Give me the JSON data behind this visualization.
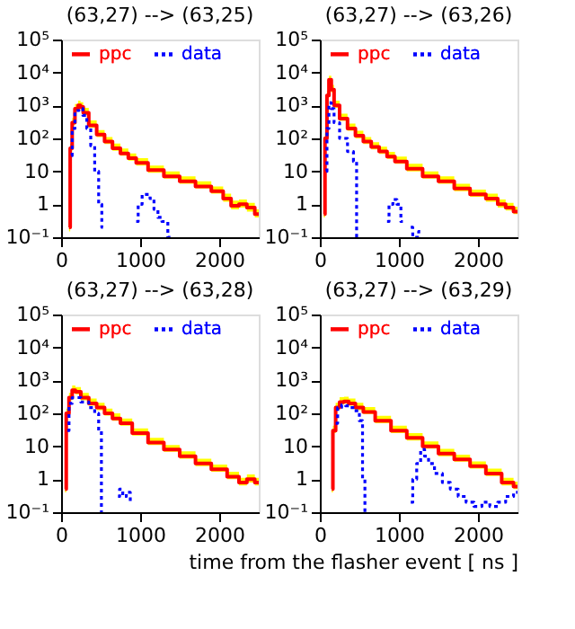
{
  "chart_data": [
    {
      "type": "step",
      "title": "(63,27) --> (63,25)",
      "xlim": [
        0,
        2500
      ],
      "xticks": [
        0,
        1000,
        2000
      ],
      "ylim": [
        0.1,
        100000
      ],
      "log": true,
      "legend": "top",
      "yticks": [
        {
          "value": 0.1,
          "label": "10⁻¹"
        },
        1,
        10,
        {
          "value": 100,
          "label": "10²"
        },
        {
          "value": 1000,
          "label": "10³"
        },
        {
          "value": 10000,
          "label": "10⁴"
        },
        {
          "value": 100000,
          "label": "10⁵"
        }
      ],
      "series": [
        {
          "name": "ppc",
          "color": "#ff0000",
          "line_style": "solid",
          "x": [
            100,
            130,
            150,
            200,
            230,
            260,
            300,
            400,
            500,
            600,
            700,
            800,
            900,
            1000,
            1200,
            1400,
            1600,
            1800,
            2000,
            2100,
            2200,
            2300,
            2400,
            2500
          ],
          "values": [
            0.2,
            50,
            300,
            800,
            1000,
            900,
            600,
            250,
            130,
            80,
            50,
            35,
            25,
            18,
            11,
            7,
            5,
            3.5,
            2.5,
            1.5,
            0.9,
            1,
            0.8,
            0.5
          ],
          "lower": [
            0.15,
            40,
            250,
            700,
            850,
            750,
            500,
            210,
            110,
            68,
            42,
            30,
            21,
            15,
            9,
            6,
            4.2,
            3,
            2.1,
            1.2,
            0.7,
            0.8,
            0.6,
            0.4
          ],
          "upper": [
            0.3,
            70,
            420,
            1100,
            1400,
            1250,
            850,
            350,
            180,
            110,
            70,
            49,
            35,
            25,
            15,
            10,
            7,
            5,
            3.5,
            2.1,
            1.3,
            1.4,
            1.1,
            0.7
          ]
        },
        {
          "name": "data",
          "color": "#0000ff",
          "line_style": "dotted",
          "x": [
            130,
            150,
            200,
            250,
            300,
            350,
            400,
            450,
            500,
            530,
            560,
            950,
            1000,
            1050,
            1100,
            1150,
            1200,
            1250,
            1300,
            1400
          ],
          "values": [
            30,
            200,
            700,
            800,
            500,
            200,
            60,
            10,
            1,
            0.2,
            null,
            0.3,
            1,
            2,
            2,
            1.5,
            0.7,
            0.4,
            0.3,
            0.1
          ]
        }
      ]
    },
    {
      "type": "step",
      "title": "(63,27) --> (63,26)",
      "xlim": [
        0,
        2500
      ],
      "xticks": [
        0,
        1000,
        2000
      ],
      "ylim": [
        0.1,
        100000
      ],
      "log": true,
      "legend": "top",
      "yticks": [
        {
          "value": 0.1,
          "label": "10⁻¹"
        },
        1,
        10,
        {
          "value": 100,
          "label": "10²"
        },
        {
          "value": 1000,
          "label": "10³"
        },
        {
          "value": 10000,
          "label": "10⁴"
        },
        {
          "value": 100000,
          "label": "10⁵"
        }
      ],
      "series": [
        {
          "name": "ppc",
          "color": "#ff0000",
          "line_style": "solid",
          "x": [
            50,
            80,
            100,
            130,
            160,
            200,
            300,
            400,
            500,
            600,
            700,
            800,
            900,
            1000,
            1200,
            1400,
            1600,
            1800,
            2000,
            2200,
            2300,
            2400,
            2500
          ],
          "values": [
            0.5,
            100,
            2000,
            6000,
            3000,
            1000,
            400,
            200,
            120,
            80,
            55,
            40,
            28,
            20,
            12,
            7,
            5,
            3,
            2,
            1.5,
            1,
            0.8,
            0.6
          ],
          "lower": [
            0.4,
            80,
            1700,
            5000,
            2500,
            850,
            340,
            170,
            100,
            68,
            46,
            34,
            24,
            17,
            10,
            6,
            4.2,
            2.5,
            1.7,
            1.2,
            0.8,
            0.65,
            0.5
          ],
          "upper": [
            0.7,
            140,
            2800,
            8000,
            4200,
            1400,
            560,
            280,
            170,
            110,
            77,
            56,
            39,
            28,
            17,
            10,
            7,
            4.2,
            2.8,
            2.1,
            1.4,
            1.1,
            0.85
          ]
        },
        {
          "name": "data",
          "color": "#0000ff",
          "line_style": "dotted",
          "x": [
            80,
            100,
            130,
            160,
            200,
            300,
            400,
            450,
            480,
            510,
            850,
            900,
            950,
            1000,
            1050,
            1100,
            1150,
            1200,
            1300
          ],
          "values": [
            10,
            200,
            1200,
            800,
            300,
            100,
            40,
            20,
            0.1,
            null,
            0.3,
            1,
            1.4,
            1,
            0.3,
            null,
            0.2,
            0.1,
            0.15
          ]
        }
      ]
    },
    {
      "type": "step",
      "title": "(63,27) --> (63,28)",
      "xlim": [
        0,
        2500
      ],
      "xticks": [
        0,
        1000,
        2000
      ],
      "ylim": [
        0.1,
        100000
      ],
      "log": true,
      "legend": "top",
      "yticks": [
        {
          "value": 0.1,
          "label": "10⁻¹"
        },
        1,
        10,
        {
          "value": 100,
          "label": "10²"
        },
        {
          "value": 1000,
          "label": "10³"
        },
        {
          "value": 10000,
          "label": "10⁴"
        },
        {
          "value": 100000,
          "label": "10⁵"
        }
      ],
      "series": [
        {
          "name": "ppc",
          "color": "#ff0000",
          "line_style": "solid",
          "x": [
            50,
            80,
            120,
            160,
            200,
            300,
            400,
            500,
            600,
            700,
            800,
            1000,
            1200,
            1400,
            1600,
            1800,
            2000,
            2200,
            2300,
            2400,
            2500
          ],
          "values": [
            0.5,
            100,
            300,
            500,
            450,
            300,
            200,
            150,
            100,
            70,
            50,
            25,
            13,
            8,
            5,
            3,
            2,
            1.2,
            0.8,
            1,
            0.8
          ],
          "lower": [
            0.4,
            80,
            250,
            420,
            380,
            250,
            170,
            125,
            85,
            60,
            42,
            21,
            11,
            6.8,
            4.2,
            2.5,
            1.7,
            1,
            0.65,
            0.8,
            0.65
          ],
          "upper": [
            0.7,
            140,
            420,
            700,
            630,
            420,
            280,
            210,
            140,
            100,
            70,
            35,
            18,
            11,
            7,
            4.2,
            2.8,
            1.7,
            1.1,
            1.4,
            1.1
          ]
        },
        {
          "name": "data",
          "color": "#0000ff",
          "line_style": "dotted",
          "x": [
            80,
            120,
            160,
            200,
            300,
            400,
            450,
            500,
            520,
            550,
            720,
            760,
            800,
            850,
            900
          ],
          "values": [
            30,
            200,
            300,
            300,
            220,
            150,
            100,
            30,
            0.1,
            null,
            0.3,
            0.5,
            0.3,
            0.4,
            0.2
          ]
        }
      ]
    },
    {
      "type": "step",
      "title": "(63,27) --> (63,29)",
      "xlabel": "time from the flasher event [ ns ]",
      "xlim": [
        0,
        2500
      ],
      "xticks": [
        0,
        1000,
        2000
      ],
      "ylim": [
        0.1,
        100000
      ],
      "log": true,
      "legend": "top",
      "yticks": [
        {
          "value": 0.1,
          "label": "10⁻¹"
        },
        1,
        10,
        {
          "value": 100,
          "label": "10²"
        },
        {
          "value": 1000,
          "label": "10³"
        },
        {
          "value": 10000,
          "label": "10⁴"
        },
        {
          "value": 100000,
          "label": "10⁵"
        }
      ],
      "series": [
        {
          "name": "ppc",
          "color": "#ff0000",
          "line_style": "solid",
          "x": [
            150,
            180,
            220,
            280,
            330,
            400,
            500,
            600,
            800,
            1000,
            1200,
            1400,
            1600,
            1800,
            2000,
            2200,
            2400,
            2500
          ],
          "values": [
            0.5,
            30,
            150,
            220,
            230,
            200,
            150,
            110,
            60,
            30,
            18,
            10,
            6,
            4,
            2.5,
            1.5,
            0.8,
            0.6
          ],
          "lower": [
            0.4,
            25,
            125,
            185,
            195,
            170,
            125,
            95,
            50,
            25,
            15,
            8.5,
            5,
            3.4,
            2.1,
            1.25,
            0.65,
            0.5
          ],
          "upper": [
            0.7,
            42,
            210,
            310,
            320,
            280,
            210,
            155,
            84,
            42,
            25,
            14,
            8.4,
            5.6,
            3.5,
            2.1,
            1.1,
            0.85
          ]
        },
        {
          "name": "data",
          "color": "#0000ff",
          "line_style": "dotted",
          "x": [
            200,
            250,
            300,
            350,
            400,
            480,
            520,
            560,
            580,
            600,
            1150,
            1200,
            1250,
            1300,
            1350,
            1400,
            1500,
            1600,
            1700,
            1800,
            1900,
            2000,
            2100,
            2200,
            2300,
            2400,
            2500
          ],
          "values": [
            50,
            150,
            180,
            170,
            150,
            120,
            60,
            1,
            0.1,
            null,
            0.2,
            1,
            3,
            8,
            5,
            3,
            1.5,
            0.8,
            0.5,
            0.3,
            0.2,
            0.15,
            0.2,
            0.15,
            0.2,
            0.3,
            0.4
          ]
        }
      ]
    }
  ]
}
